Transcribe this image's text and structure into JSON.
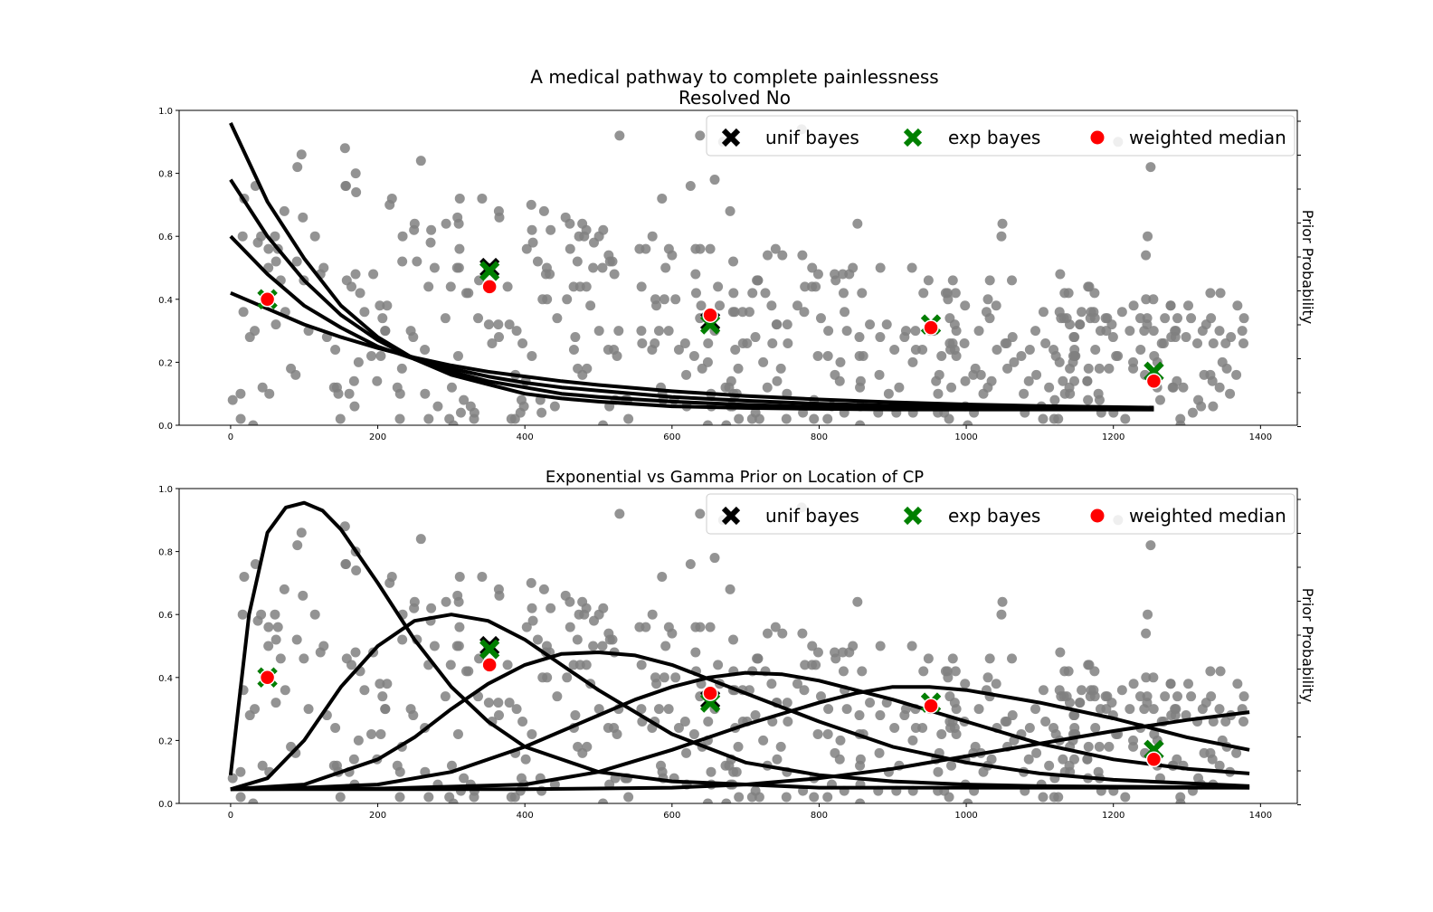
{
  "figure": {
    "title_line1": "A medical pathway to complete painlessness",
    "title_line2": "Resolved No"
  },
  "colors": {
    "scatter": "#808080",
    "curve": "#000000",
    "unif_bayes": "#000000",
    "exp_bayes": "#008000",
    "weighted_median": "#ff0000"
  },
  "legend_labels": [
    "unif bayes",
    "exp bayes",
    "weighted median"
  ],
  "chart_data": [
    {
      "type": "scatter",
      "title": "",
      "ylabel": "Prior Probability",
      "xlim": [
        -70,
        1450
      ],
      "ylim": [
        0,
        1
      ],
      "xticks": [
        "0",
        "200",
        "400",
        "600",
        "800",
        "1000",
        "1200",
        "1400"
      ],
      "yticks": [
        "0.0",
        "0.2",
        "0.4",
        "0.6",
        "0.8",
        "1.0"
      ],
      "legend_position": "top-right",
      "curves": [
        {
          "kind": "exponential",
          "x": [
            0,
            50,
            100,
            150,
            200,
            250,
            300,
            350,
            400,
            450,
            500,
            600,
            700,
            800,
            900,
            1000,
            1100,
            1255
          ],
          "y": [
            0.96,
            0.71,
            0.53,
            0.38,
            0.28,
            0.21,
            0.16,
            0.13,
            0.1,
            0.085,
            0.075,
            0.06,
            0.055,
            0.052,
            0.05,
            0.05,
            0.05,
            0.05
          ]
        },
        {
          "kind": "exponential",
          "x": [
            0,
            50,
            100,
            150,
            200,
            250,
            300,
            350,
            400,
            450,
            500,
            600,
            700,
            800,
            900,
            1000,
            1100,
            1255
          ],
          "y": [
            0.78,
            0.6,
            0.46,
            0.35,
            0.27,
            0.21,
            0.17,
            0.14,
            0.12,
            0.1,
            0.09,
            0.075,
            0.065,
            0.058,
            0.055,
            0.053,
            0.051,
            0.05
          ]
        },
        {
          "kind": "exponential",
          "x": [
            0,
            50,
            100,
            150,
            200,
            250,
            300,
            350,
            400,
            450,
            500,
            600,
            700,
            800,
            900,
            1000,
            1100,
            1255
          ],
          "y": [
            0.6,
            0.48,
            0.38,
            0.31,
            0.25,
            0.21,
            0.18,
            0.155,
            0.135,
            0.12,
            0.11,
            0.09,
            0.078,
            0.068,
            0.062,
            0.058,
            0.055,
            0.052
          ]
        },
        {
          "kind": "exponential",
          "x": [
            0,
            50,
            100,
            150,
            200,
            250,
            300,
            350,
            400,
            450,
            500,
            600,
            700,
            800,
            900,
            1000,
            1100,
            1255
          ],
          "y": [
            0.42,
            0.37,
            0.32,
            0.28,
            0.245,
            0.215,
            0.19,
            0.17,
            0.155,
            0.14,
            0.128,
            0.108,
            0.093,
            0.082,
            0.073,
            0.066,
            0.061,
            0.056
          ]
        }
      ],
      "markers": {
        "unif_bayes": {
          "x": [
            50,
            352,
            652,
            952,
            1255
          ],
          "y": [
            0.4,
            0.5,
            0.33,
            0.32,
            0.17
          ]
        },
        "exp_bayes": {
          "x": [
            50,
            352,
            652,
            952,
            1255
          ],
          "y": [
            0.4,
            0.49,
            0.32,
            0.32,
            0.17
          ]
        },
        "weighted_median": {
          "x": [
            50,
            352,
            652,
            952,
            1255
          ],
          "y": [
            0.4,
            0.44,
            0.35,
            0.31,
            0.14
          ]
        }
      }
    },
    {
      "type": "scatter",
      "title": "Exponential vs Gamma Prior on Location of CP",
      "ylabel": "Prior Probability",
      "xlim": [
        -70,
        1450
      ],
      "ylim": [
        0,
        1
      ],
      "xticks": [
        "0",
        "200",
        "400",
        "600",
        "800",
        "1000",
        "1200",
        "1400"
      ],
      "yticks": [
        "0.0",
        "0.2",
        "0.4",
        "0.6",
        "0.8",
        "1.0"
      ],
      "legend_position": "top-right",
      "curves": [
        {
          "kind": "gamma",
          "x": [
            0,
            25,
            50,
            75,
            100,
            125,
            150,
            200,
            250,
            300,
            350,
            400,
            500,
            600,
            800,
            1000,
            1385
          ],
          "y": [
            0.09,
            0.6,
            0.86,
            0.94,
            0.955,
            0.93,
            0.87,
            0.7,
            0.52,
            0.37,
            0.26,
            0.18,
            0.1,
            0.07,
            0.05,
            0.05,
            0.05
          ]
        },
        {
          "kind": "gamma",
          "x": [
            0,
            50,
            100,
            150,
            200,
            250,
            300,
            350,
            400,
            450,
            500,
            600,
            700,
            800,
            900,
            1000,
            1100,
            1385
          ],
          "y": [
            0.045,
            0.08,
            0.2,
            0.37,
            0.5,
            0.58,
            0.6,
            0.58,
            0.52,
            0.44,
            0.36,
            0.22,
            0.13,
            0.09,
            0.07,
            0.06,
            0.055,
            0.05
          ]
        },
        {
          "kind": "gamma",
          "x": [
            0,
            100,
            200,
            250,
            300,
            350,
            400,
            450,
            500,
            550,
            600,
            700,
            800,
            900,
            1000,
            1100,
            1200,
            1385
          ],
          "y": [
            0.045,
            0.06,
            0.14,
            0.21,
            0.3,
            0.38,
            0.44,
            0.475,
            0.48,
            0.47,
            0.44,
            0.35,
            0.26,
            0.18,
            0.13,
            0.095,
            0.075,
            0.055
          ]
        },
        {
          "kind": "gamma",
          "x": [
            0,
            100,
            200,
            300,
            400,
            500,
            550,
            600,
            650,
            700,
            750,
            800,
            900,
            1000,
            1100,
            1200,
            1300,
            1385
          ],
          "y": [
            0.045,
            0.05,
            0.06,
            0.1,
            0.18,
            0.28,
            0.33,
            0.37,
            0.4,
            0.415,
            0.41,
            0.39,
            0.33,
            0.26,
            0.19,
            0.14,
            0.11,
            0.095
          ]
        },
        {
          "kind": "gamma",
          "x": [
            0,
            200,
            400,
            500,
            600,
            700,
            800,
            850,
            900,
            950,
            1000,
            1100,
            1200,
            1300,
            1385
          ],
          "y": [
            0.045,
            0.047,
            0.06,
            0.1,
            0.17,
            0.25,
            0.32,
            0.35,
            0.37,
            0.37,
            0.36,
            0.32,
            0.27,
            0.21,
            0.17
          ]
        },
        {
          "kind": "gamma",
          "x": [
            0,
            400,
            600,
            700,
            800,
            900,
            1000,
            1100,
            1200,
            1300,
            1385
          ],
          "y": [
            0.045,
            0.045,
            0.05,
            0.06,
            0.08,
            0.11,
            0.15,
            0.19,
            0.23,
            0.265,
            0.29
          ]
        }
      ],
      "markers": {
        "unif_bayes": {
          "x": [
            50,
            352,
            652,
            952,
            1255
          ],
          "y": [
            0.4,
            0.5,
            0.33,
            0.32,
            0.17
          ]
        },
        "exp_bayes": {
          "x": [
            50,
            352,
            652,
            952,
            1255
          ],
          "y": [
            0.4,
            0.49,
            0.32,
            0.32,
            0.17
          ]
        },
        "weighted_median": {
          "x": [
            50,
            352,
            652,
            952,
            1255
          ],
          "y": [
            0.4,
            0.44,
            0.35,
            0.31,
            0.14
          ]
        }
      }
    }
  ]
}
